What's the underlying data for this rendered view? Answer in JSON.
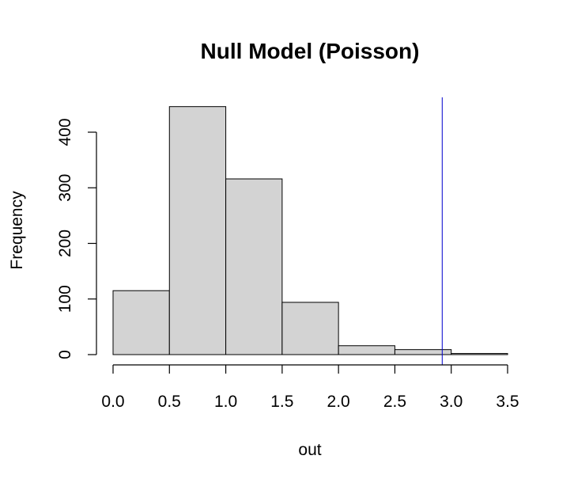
{
  "chart_data": {
    "type": "bar",
    "title": "Null Model (Poisson)",
    "xlabel": "out",
    "ylabel": "Frequency",
    "bins": [
      {
        "start": 0.0,
        "end": 0.5,
        "count": 115
      },
      {
        "start": 0.5,
        "end": 1.0,
        "count": 446
      },
      {
        "start": 1.0,
        "end": 1.5,
        "count": 316
      },
      {
        "start": 1.5,
        "end": 2.0,
        "count": 94
      },
      {
        "start": 2.0,
        "end": 2.5,
        "count": 16
      },
      {
        "start": 2.5,
        "end": 3.0,
        "count": 9
      },
      {
        "start": 3.0,
        "end": 3.5,
        "count": 2
      }
    ],
    "x_ticks": [
      0.0,
      0.5,
      1.0,
      1.5,
      2.0,
      2.5,
      3.0,
      3.5
    ],
    "x_tick_labels": [
      "0.0",
      "0.5",
      "1.0",
      "1.5",
      "2.0",
      "2.5",
      "3.0",
      "3.5"
    ],
    "y_ticks": [
      0,
      100,
      200,
      300,
      400
    ],
    "y_tick_labels": [
      "0",
      "100",
      "200",
      "300",
      "400"
    ],
    "xlim": [
      0.0,
      3.5
    ],
    "ylim": [
      0,
      400
    ],
    "reference_line": {
      "x": 2.92,
      "color": "#0000cd"
    },
    "bar_color": "#d3d3d3",
    "grid": false
  }
}
